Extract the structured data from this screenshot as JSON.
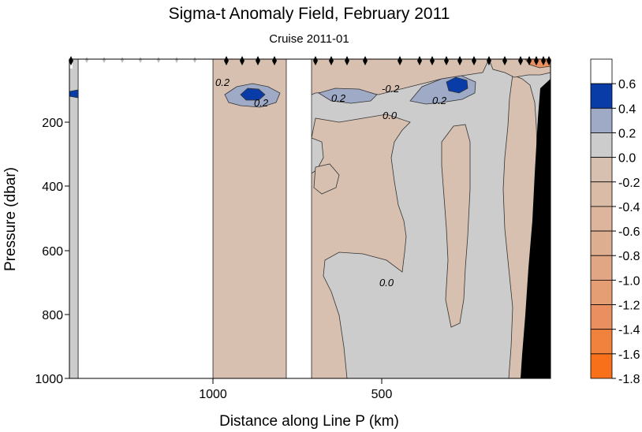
{
  "chart_data": {
    "type": "heatmap",
    "title": "Sigma-t Anomaly Field,  February 2011",
    "subtitle": "Cruise 2011-01",
    "xlabel": "Distance along Line P  (km)",
    "ylabel": "Pressure  (dbar)",
    "x_ticks": [
      "1000",
      "500"
    ],
    "y_ticks": [
      "200",
      "400",
      "600",
      "800",
      "1000"
    ],
    "ylim": [
      0,
      1000
    ],
    "y_inverted": true,
    "contour_labels": [
      "0.2",
      "0.2",
      "0.2",
      "0.2",
      "0.0",
      "0.0",
      "-0.2"
    ],
    "colorbar": {
      "labels": [
        "0.6",
        "0.4",
        "0.2",
        "0.0",
        "-0.2",
        "-0.4",
        "-0.6",
        "-0.8",
        "-1.0",
        "-1.2",
        "-1.4",
        "-1.6",
        "-1.8"
      ],
      "colors": [
        "#ffffff",
        "#0a3ca8",
        "#9eaac6",
        "#cccccc",
        "#d7c0b0",
        "#d9bba6",
        "#dcb59c",
        "#deae90",
        "#e1a785",
        "#e59d74",
        "#ea9060",
        "#f0823e",
        "#f8711a"
      ]
    },
    "colors": {
      "background": "#ffffff",
      "neutral": "#cccccc",
      "negative": "#d7c0b0",
      "positive_high": "#0a3ca8",
      "positive_low": "#9eaac6",
      "bathymetry": "#000000"
    }
  }
}
